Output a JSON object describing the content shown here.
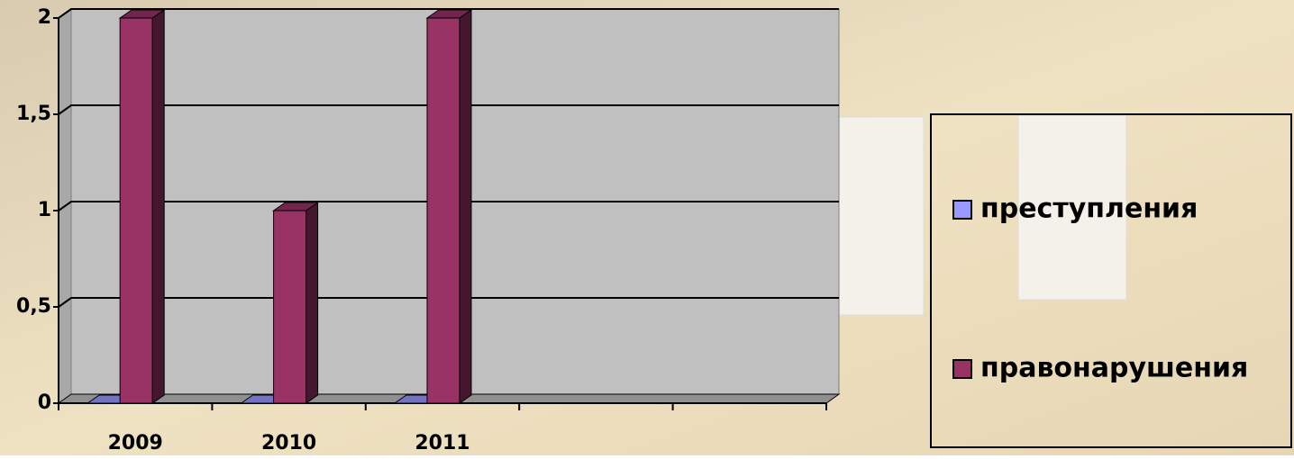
{
  "chart_data": {
    "type": "bar3d",
    "categories": [
      "2009",
      "2010",
      "2011",
      null,
      null
    ],
    "series": [
      {
        "name": "преступления",
        "color": "#9999ff",
        "values": [
          0,
          0,
          0,
          null,
          null
        ]
      },
      {
        "name": "правонарушения",
        "color": "#993366",
        "values": [
          2,
          1,
          2,
          null,
          null
        ]
      }
    ],
    "ylim": [
      0,
      2
    ],
    "yticks": [
      0,
      {
        "value": 0.5,
        "label": "0,5"
      },
      1,
      {
        "value": 1.5,
        "label": "1,5"
      },
      2
    ],
    "grid": true,
    "legend": "right"
  }
}
